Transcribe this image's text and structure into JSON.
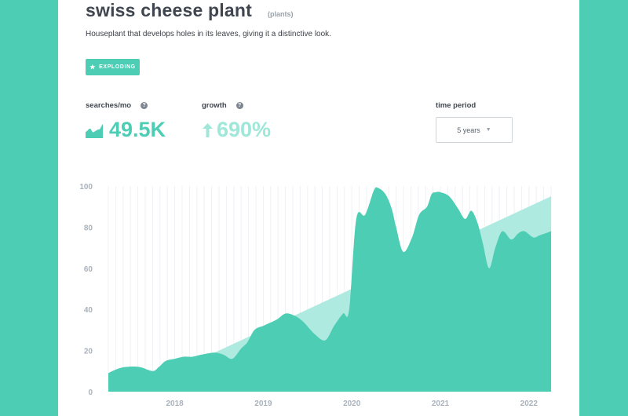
{
  "header": {
    "title": "swiss cheese plant",
    "category": "(plants)",
    "description": "Houseplant that develops holes in its leaves, giving it a distinctive look."
  },
  "badge": {
    "label": "EXPLODING",
    "icon": "star-icon"
  },
  "metrics": {
    "searches": {
      "label": "searches/mo",
      "value": "49.5K",
      "icon": "trend-icon"
    },
    "growth": {
      "label": "growth",
      "value": "690%",
      "icon": "arrow-up-icon"
    }
  },
  "time_period": {
    "label": "time period",
    "selected": "5 years"
  },
  "colors": {
    "accent": "#4ecdb5",
    "trend": "#aeeadf",
    "title": "#3f4650",
    "axis": "#a9b2bb"
  },
  "chart_data": {
    "type": "area",
    "x_tick_labels": [
      "2018",
      "2019",
      "2020",
      "2021",
      "2022"
    ],
    "y_ticks": [
      0,
      20,
      40,
      60,
      80,
      100
    ],
    "ylim": [
      0,
      100
    ],
    "xlim": [
      2017.25,
      2022.25
    ],
    "grid": true,
    "series": [
      {
        "x": [
          2017.25,
          2017.35,
          2017.45,
          2017.6,
          2017.75,
          2017.82,
          2017.9,
          2018.0,
          2018.1,
          2018.2,
          2018.3,
          2018.45,
          2018.55,
          2018.65,
          2018.75,
          2018.82,
          2018.9,
          2019.0,
          2019.05,
          2019.15,
          2019.25,
          2019.35,
          2019.45,
          2019.58,
          2019.7,
          2019.8,
          2019.9,
          2019.97,
          2020.05,
          2020.15,
          2020.25,
          2020.3,
          2020.38,
          2020.45,
          2020.5,
          2020.58,
          2020.68,
          2020.76,
          2020.85,
          2020.9,
          2020.95,
          2021.0,
          2021.1,
          2021.2,
          2021.28,
          2021.35,
          2021.42,
          2021.48,
          2021.55,
          2021.62,
          2021.7,
          2021.8,
          2021.88,
          2021.95,
          2022.05,
          2022.12,
          2022.25
        ],
        "values": [
          9,
          11,
          12,
          12,
          10,
          12,
          15,
          16,
          17,
          17,
          18,
          19,
          18,
          16,
          21,
          24,
          30,
          32,
          33,
          35,
          38,
          37,
          34,
          28,
          25,
          32,
          38,
          40,
          84,
          86,
          98,
          99,
          96,
          89,
          80,
          68,
          75,
          86,
          90,
          96,
          97,
          97,
          95,
          89,
          84,
          88,
          82,
          72,
          60,
          70,
          78,
          74,
          77,
          78,
          75,
          76,
          78
        ]
      },
      {
        "x": [
          2018.35,
          2022.25
        ],
        "values": [
          17,
          95
        ]
      }
    ]
  }
}
